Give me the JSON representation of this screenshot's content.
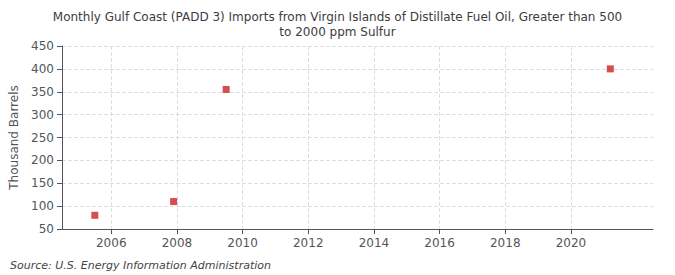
{
  "chart_data": {
    "type": "scatter",
    "title": "Monthly Gulf Coast (PADD 3) Imports from Virgin Islands of Distillate Fuel Oil, Greater than 500\nto 2000 ppm Sulfur",
    "ylabel": "Thousand Barrels",
    "annotations": [
      "Source: U.S. Energy Information Administration"
    ],
    "x": [
      2005.5,
      2007.9,
      2009.5,
      2021.2
    ],
    "values": [
      80,
      110,
      355,
      400
    ],
    "color": "#cc2222",
    "marker": "square",
    "xlim": [
      2004.5,
      2022.5
    ],
    "ylim": [
      50,
      450
    ],
    "xticks": [
      2006,
      2008,
      2010,
      2012,
      2014,
      2016,
      2018,
      2020
    ],
    "yticks": [
      50,
      100,
      150,
      200,
      250,
      300,
      350,
      400,
      450
    ],
    "grid": true
  }
}
